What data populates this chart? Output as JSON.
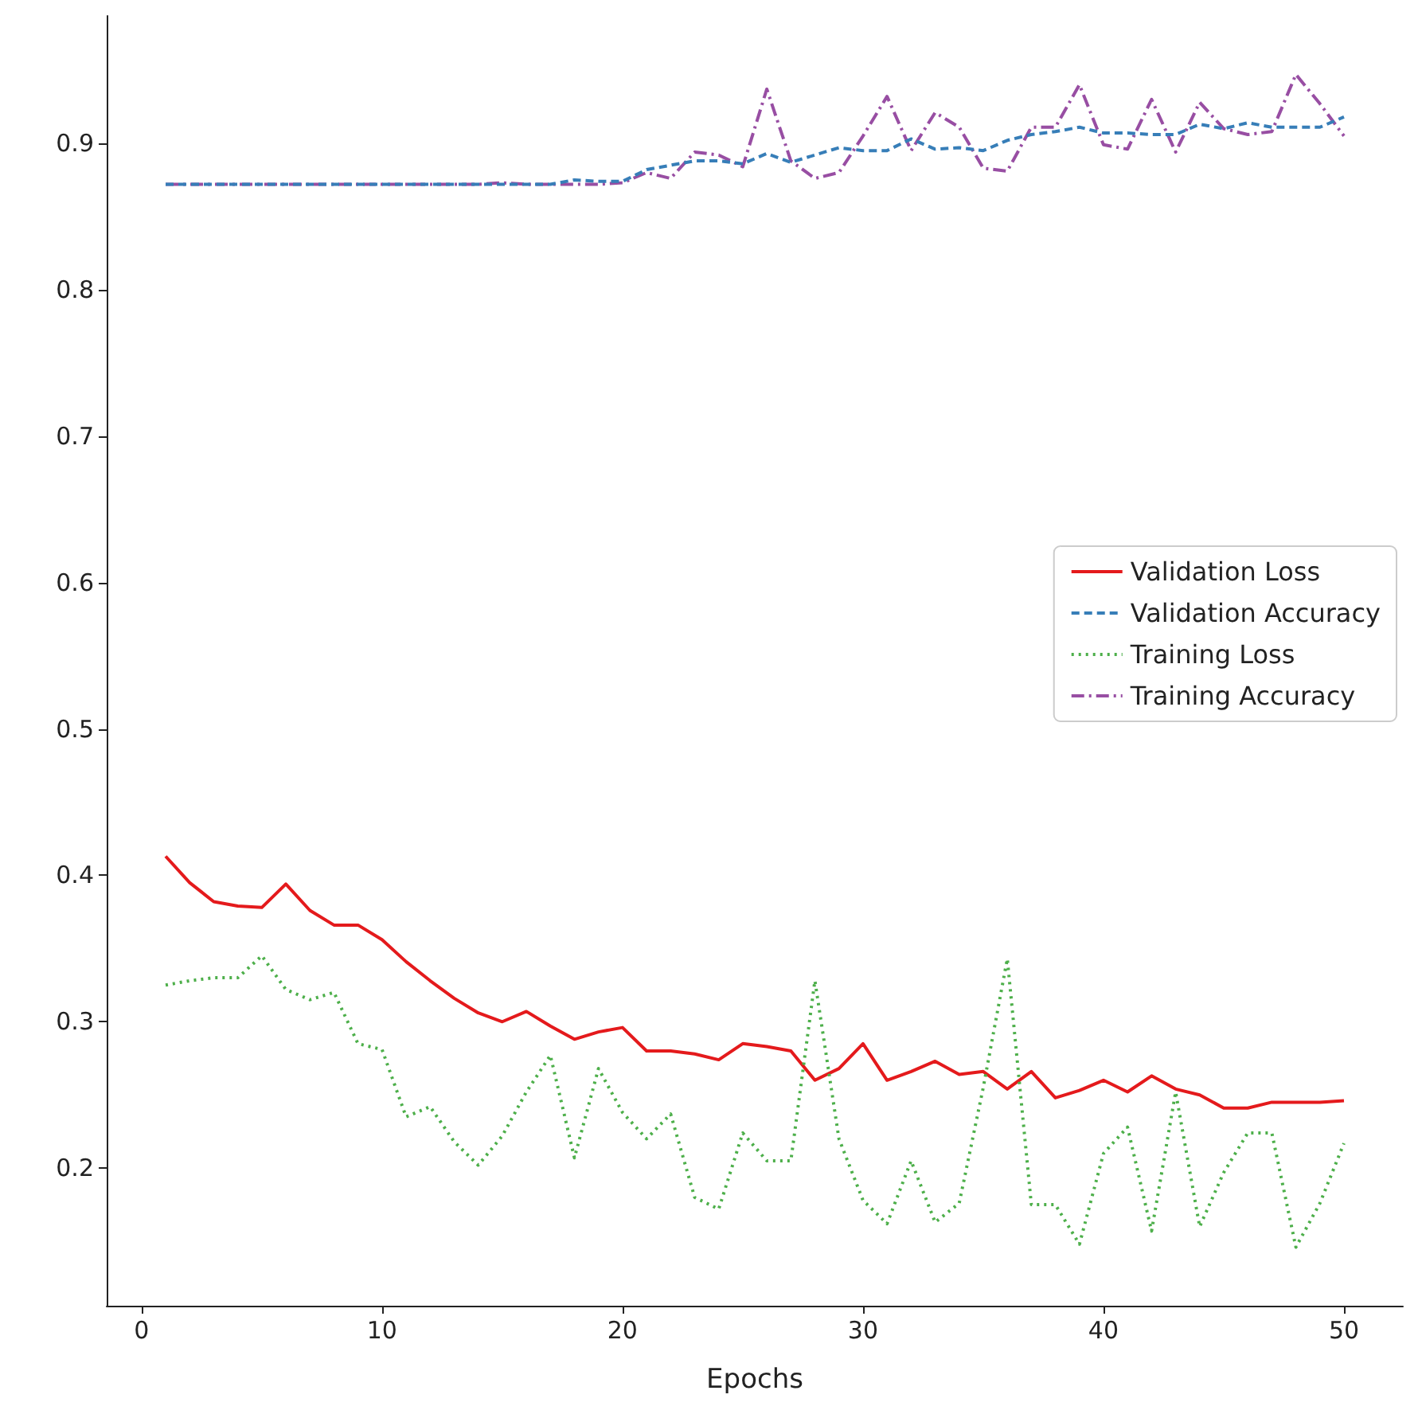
{
  "chart_data": {
    "type": "line",
    "xlabel": "Epochs",
    "x": [
      1,
      2,
      3,
      4,
      5,
      6,
      7,
      8,
      9,
      10,
      11,
      12,
      13,
      14,
      15,
      16,
      17,
      18,
      19,
      20,
      21,
      22,
      23,
      24,
      25,
      26,
      27,
      28,
      29,
      30,
      31,
      32,
      33,
      34,
      35,
      36,
      37,
      38,
      39,
      40,
      41,
      42,
      43,
      44,
      45,
      46,
      47,
      48,
      49,
      50
    ],
    "series": [
      {
        "name": "Validation Loss",
        "color": "#e41a1c",
        "line_style": "solid",
        "values": [
          0.413,
          0.395,
          0.382,
          0.379,
          0.378,
          0.394,
          0.376,
          0.366,
          0.366,
          0.356,
          0.341,
          0.328,
          0.316,
          0.306,
          0.3,
          0.307,
          0.297,
          0.288,
          0.293,
          0.296,
          0.28,
          0.28,
          0.278,
          0.274,
          0.285,
          0.283,
          0.28,
          0.26,
          0.268,
          0.285,
          0.26,
          0.266,
          0.273,
          0.264,
          0.266,
          0.254,
          0.266,
          0.248,
          0.253,
          0.26,
          0.252,
          0.263,
          0.254,
          0.25,
          0.241,
          0.241,
          0.245,
          0.245,
          0.245,
          0.246
        ]
      },
      {
        "name": "Validation Accuracy",
        "color": "#377eb8",
        "line_style": "dashed",
        "values": [
          0.872,
          0.872,
          0.872,
          0.872,
          0.872,
          0.872,
          0.872,
          0.872,
          0.872,
          0.872,
          0.872,
          0.872,
          0.872,
          0.872,
          0.872,
          0.872,
          0.872,
          0.875,
          0.874,
          0.874,
          0.882,
          0.885,
          0.888,
          0.888,
          0.886,
          0.893,
          0.887,
          0.892,
          0.897,
          0.895,
          0.895,
          0.903,
          0.896,
          0.897,
          0.895,
          0.902,
          0.906,
          0.908,
          0.911,
          0.907,
          0.907,
          0.906,
          0.906,
          0.913,
          0.91,
          0.914,
          0.911,
          0.911,
          0.911,
          0.918
        ]
      },
      {
        "name": "Training Loss",
        "color": "#4daf4a",
        "line_style": "dotted",
        "values": [
          0.325,
          0.328,
          0.33,
          0.33,
          0.345,
          0.322,
          0.315,
          0.32,
          0.285,
          0.281,
          0.235,
          0.242,
          0.218,
          0.202,
          0.222,
          0.252,
          0.277,
          0.207,
          0.268,
          0.238,
          0.22,
          0.237,
          0.18,
          0.172,
          0.224,
          0.205,
          0.205,
          0.328,
          0.22,
          0.178,
          0.162,
          0.205,
          0.163,
          0.176,
          0.255,
          0.343,
          0.175,
          0.175,
          0.148,
          0.21,
          0.228,
          0.157,
          0.252,
          0.16,
          0.197,
          0.224,
          0.224,
          0.146,
          0.176,
          0.217
        ]
      },
      {
        "name": "Training Accuracy",
        "color": "#984ea3",
        "line_style": "dashdot",
        "values": [
          0.872,
          0.872,
          0.872,
          0.872,
          0.872,
          0.872,
          0.872,
          0.872,
          0.872,
          0.872,
          0.872,
          0.872,
          0.872,
          0.872,
          0.873,
          0.872,
          0.872,
          0.872,
          0.872,
          0.873,
          0.88,
          0.876,
          0.894,
          0.892,
          0.884,
          0.937,
          0.888,
          0.876,
          0.88,
          0.905,
          0.932,
          0.895,
          0.921,
          0.911,
          0.883,
          0.881,
          0.911,
          0.911,
          0.94,
          0.899,
          0.896,
          0.93,
          0.894,
          0.928,
          0.91,
          0.906,
          0.908,
          0.947,
          0.927,
          0.905
        ]
      }
    ],
    "xlim": [
      -1.45,
      52.45
    ],
    "xticks": [
      0,
      10,
      20,
      30,
      40,
      50
    ],
    "ylim": [
      0.106,
      0.987
    ],
    "yticks": [
      0.2,
      0.3,
      0.4,
      0.5,
      0.6,
      0.7,
      0.8,
      0.9
    ],
    "grid": false,
    "legend": "right",
    "marker": "none"
  }
}
